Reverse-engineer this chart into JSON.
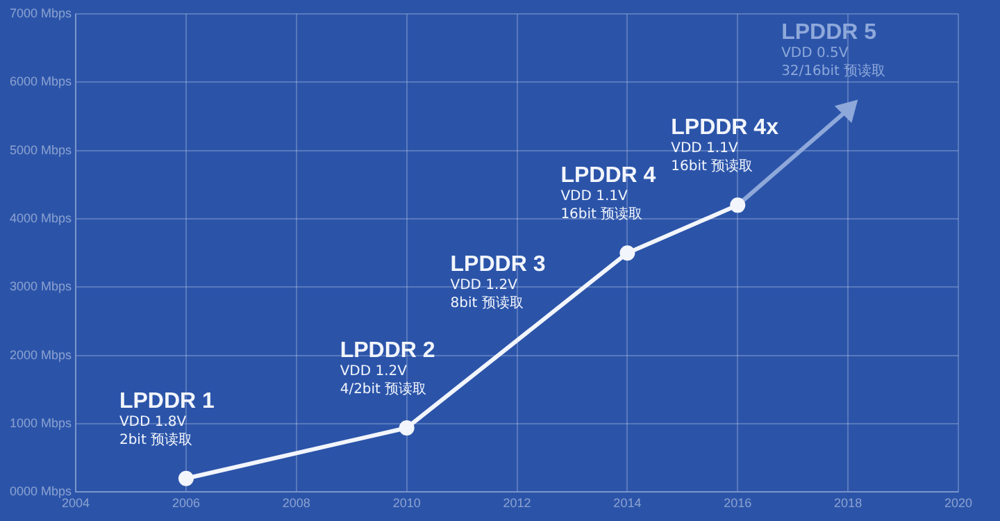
{
  "chart_data": {
    "type": "line",
    "xlim": [
      2004,
      2020
    ],
    "xticks": [
      2004,
      2006,
      2008,
      2010,
      2012,
      2014,
      2016,
      2018,
      2020
    ],
    "ylim": [
      0,
      7000
    ],
    "yticks": [
      {
        "value": 0,
        "label": "0000 Mbps"
      },
      {
        "value": 1000,
        "label": "1000 Mbps"
      },
      {
        "value": 2000,
        "label": "2000 Mbps"
      },
      {
        "value": 3000,
        "label": "3000 Mbps"
      },
      {
        "value": 4000,
        "label": "4000 Mbps"
      },
      {
        "value": 5000,
        "label": "5000 Mbps"
      },
      {
        "value": 6000,
        "label": "6000 Mbps"
      },
      {
        "value": 7000,
        "label": "7000 Mbps"
      }
    ],
    "grid": true,
    "legend": false,
    "series": [
      {
        "color": "#f2f5fb",
        "x": [
          2006,
          2010,
          2014,
          2016
        ],
        "values": [
          200,
          940,
          3500,
          4200
        ],
        "marker": "circle"
      },
      {
        "color": "#8ea8da",
        "x": [
          2016,
          2018
        ],
        "values": [
          4200,
          5600
        ],
        "marker": "triangle"
      }
    ],
    "annotations": [
      {
        "text": "LPDDR 1\nVDD 1.8V\n2bit 预读取",
        "x": 2006,
        "y": 200
      },
      {
        "text": "LPDDR 2\nVDD 1.2V\n4/2bit 预读取",
        "x": 2010,
        "y": 940
      },
      {
        "text": "LPDDR 3\nVDD 1.2V\n8bit 预读取",
        "x": 2012,
        "y": 2200
      },
      {
        "text": "LPDDR 4\nVDD 1.1V\n16bit 预读取",
        "x": 2014,
        "y": 3500
      },
      {
        "text": "LPDDR 4x\nVDD 1.1V\n16bit 预读取",
        "x": 2016,
        "y": 4200
      },
      {
        "text": "LPDDR 5\nVDD 0.5V\n32/16bit 预读取",
        "x": 2018,
        "y": 5600
      }
    ]
  }
}
